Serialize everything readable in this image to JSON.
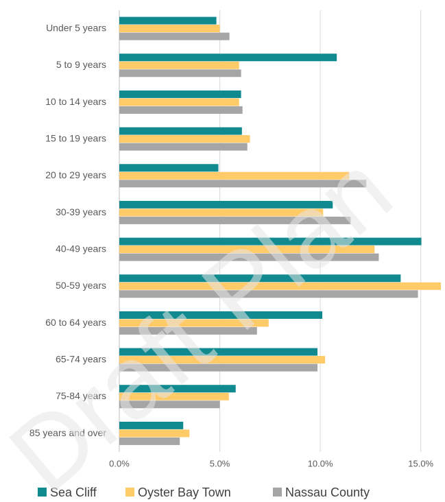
{
  "chart_data": {
    "type": "bar",
    "orientation": "horizontal",
    "watermark": "Draft Plan",
    "categories": [
      "Under 5 years",
      "5 to 9 years",
      "10 to 14 years",
      "15 to 19 years",
      "20 to 29 years",
      "30-39 years",
      "40-49 years",
      "50-59 years",
      "60 to 64 years",
      "65-74 years",
      "75-84 years",
      "85 years and over"
    ],
    "series": [
      {
        "name": "Sea Cliff",
        "color": "#108a8f",
        "values": [
          4.83,
          10.82,
          6.06,
          6.1,
          4.93,
          10.62,
          15.03,
          14.0,
          10.1,
          9.86,
          5.79,
          3.18
        ]
      },
      {
        "name": "Oyster Bay Town",
        "color": "#ffca68",
        "values": [
          5.0,
          5.96,
          5.96,
          6.5,
          11.44,
          10.14,
          12.7,
          16.0,
          7.43,
          10.24,
          5.45,
          3.49
        ]
      },
      {
        "name": "Nassau County",
        "color": "#a5a5a5",
        "values": [
          5.48,
          6.06,
          6.13,
          6.37,
          12.29,
          11.51,
          12.91,
          14.86,
          6.85,
          9.86,
          5.0,
          3.01
        ]
      }
    ],
    "xlim": [
      0,
      16
    ],
    "xticks": [
      {
        "value": 0,
        "label": "0.0%"
      },
      {
        "value": 5,
        "label": "5.0%"
      },
      {
        "value": 10,
        "label": "10.0%"
      },
      {
        "value": 15,
        "label": "15.0%"
      }
    ],
    "grid": true,
    "legend": "bottom"
  }
}
